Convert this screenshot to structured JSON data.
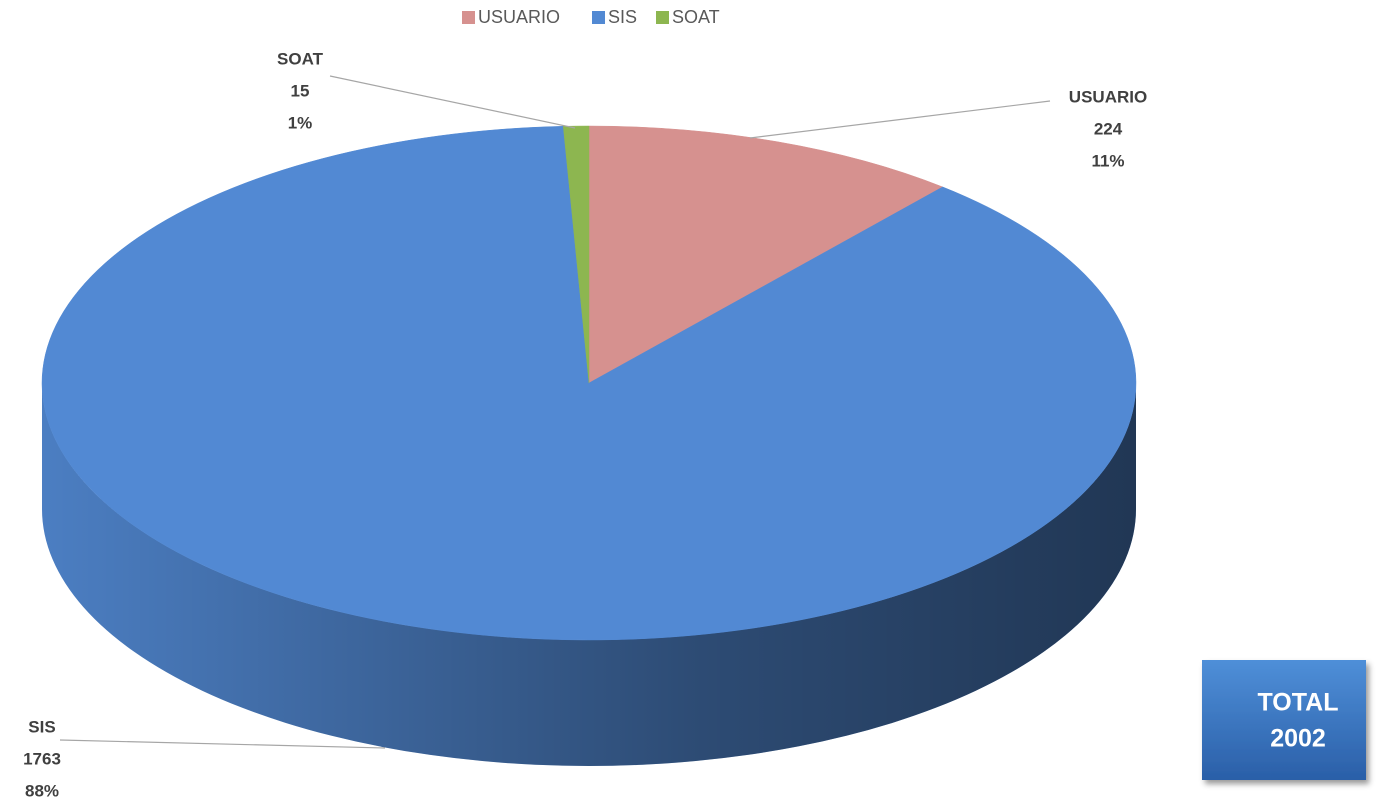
{
  "chart_data": {
    "type": "pie3d",
    "categories": [
      "USUARIO",
      "SIS",
      "SOAT"
    ],
    "values": [
      224,
      1763,
      15
    ],
    "value_labels": [
      "224",
      "1763",
      "15"
    ],
    "percent_labels": [
      "11%",
      "88%",
      "1%"
    ],
    "colors": [
      "#d6918f",
      "#5289d3",
      "#8db650"
    ],
    "legend": "top",
    "total_label": "TOTAL",
    "total": 2002
  }
}
